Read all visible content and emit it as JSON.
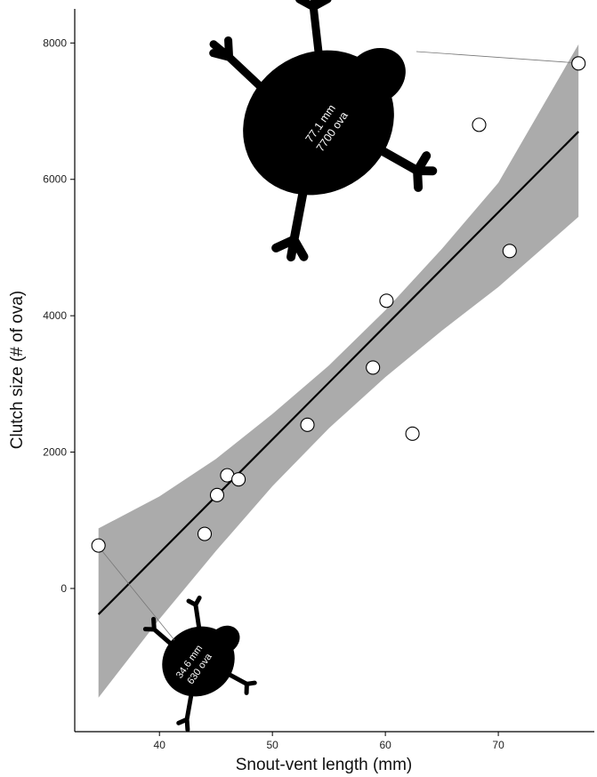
{
  "chart_data": {
    "type": "scatter",
    "xlabel": "Snout-vent length (mm)",
    "ylabel": "Clutch size (# of ova)",
    "xlim": [
      32.5,
      78.5
    ],
    "ylim": [
      -2100,
      8500
    ],
    "xticks": [
      40,
      50,
      60,
      70
    ],
    "yticks": [
      0,
      2000,
      4000,
      6000,
      8000
    ],
    "points": [
      {
        "x": 34.6,
        "y": 630
      },
      {
        "x": 44.0,
        "y": 800
      },
      {
        "x": 45.1,
        "y": 1370
      },
      {
        "x": 46.0,
        "y": 1660
      },
      {
        "x": 47.0,
        "y": 1600
      },
      {
        "x": 53.1,
        "y": 2400
      },
      {
        "x": 58.9,
        "y": 3240
      },
      {
        "x": 60.1,
        "y": 4220
      },
      {
        "x": 62.4,
        "y": 2270
      },
      {
        "x": 68.3,
        "y": 6800
      },
      {
        "x": 71.0,
        "y": 4950
      },
      {
        "x": 77.1,
        "y": 7700
      }
    ],
    "fit_line": {
      "x": [
        34.6,
        77.1
      ],
      "y": [
        -380,
        6700
      ]
    },
    "confidence_band": {
      "x": [
        34.6,
        40,
        45,
        50,
        55,
        60,
        65,
        70,
        77.1
      ],
      "lower": [
        -1600,
        -450,
        550,
        1500,
        2350,
        3100,
        3780,
        4420,
        5450
      ],
      "upper": [
        880,
        1350,
        1900,
        2560,
        3270,
        4080,
        4980,
        5950,
        7980
      ]
    },
    "grid": false,
    "legend": "none",
    "annotations": [
      {
        "id": "large",
        "line1": "77.1 mm",
        "line2": "7700 ova",
        "x": 77.1,
        "y": 7700
      },
      {
        "id": "small",
        "line1": "34.6 mm",
        "line2": "630 ova",
        "x": 34.6,
        "y": 630
      }
    ]
  },
  "colors": {
    "band": "#ababab",
    "line": "#000000",
    "point_fill": "#ffffff",
    "point_stroke": "#000000",
    "silhouette": "#000000",
    "annotation_text": "#ffffff"
  }
}
